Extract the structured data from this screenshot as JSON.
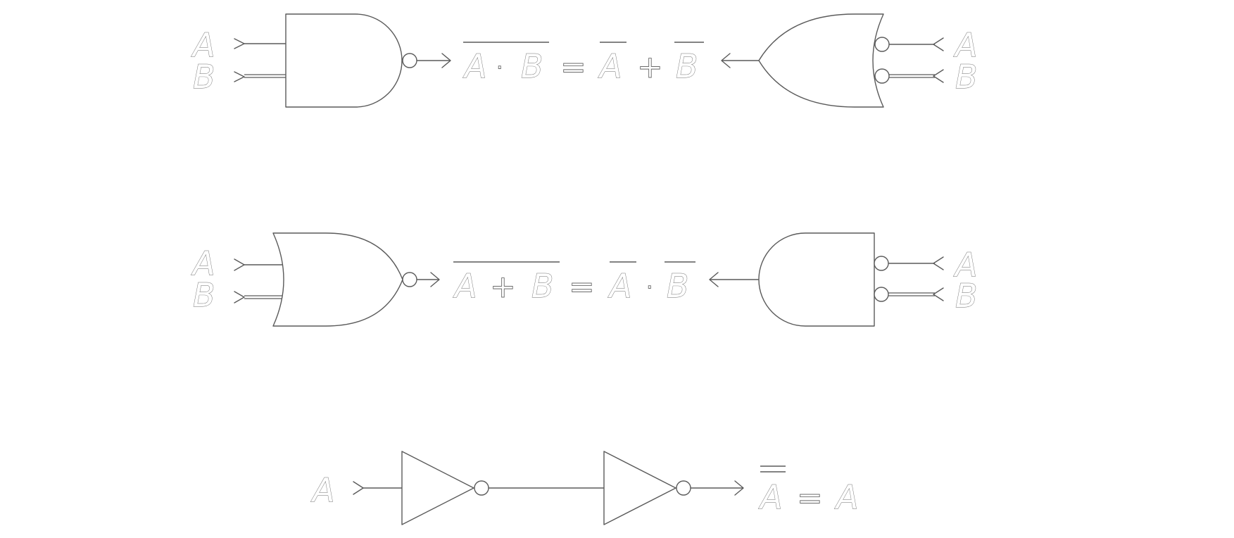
{
  "row1": {
    "input_a": "A",
    "input_b": "B",
    "lhs": [
      "A",
      "·",
      "B"
    ],
    "equals": "=",
    "rhs": [
      "A",
      "+",
      "B"
    ],
    "right_input_a": "A",
    "right_input_b": "B"
  },
  "row2": {
    "input_a": "A",
    "input_b": "B",
    "lhs": [
      "A",
      "+",
      "B"
    ],
    "equals": "=",
    "rhs": [
      "A",
      "·",
      "B"
    ],
    "right_input_a": "A",
    "right_input_b": "B"
  },
  "row3": {
    "input_a": "A",
    "lhs": "A",
    "equals": "=",
    "rhs": "A"
  },
  "colors": {
    "stroke": "#5a5a5a",
    "background": "#ffffff"
  }
}
